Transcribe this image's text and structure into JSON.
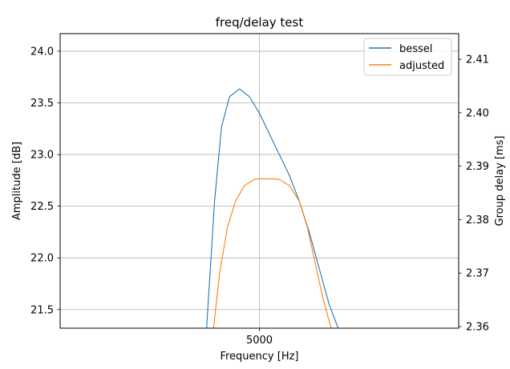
{
  "chart_data": {
    "type": "line",
    "title": "freq/delay test",
    "xlabel": "Frequency [Hz]",
    "ylabel": "Amplitude [dB]",
    "y2label": "Group delay [ms]",
    "xticks": [
      5000
    ],
    "xtick_labels": [
      "5000"
    ],
    "yticks": [
      21.5,
      22.0,
      22.5,
      23.0,
      23.5,
      24.0
    ],
    "ytick_labels": [
      "21.5",
      "22.0",
      "22.5",
      "23.0",
      "23.5",
      "24.0"
    ],
    "y2ticks": [
      2.36,
      2.37,
      2.38,
      2.39,
      2.4,
      2.41
    ],
    "y2tick_labels": [
      "2.36",
      "2.37",
      "2.38",
      "2.39",
      "2.40",
      "2.41"
    ],
    "xlim": [
      3000,
      7000
    ],
    "ylim": [
      21.32,
      24.17
    ],
    "y2lim": [
      2.3597,
      2.4148
    ],
    "grid": true,
    "legend_position": "top-right",
    "series": [
      {
        "name": "bessel",
        "color": "#1f77b4",
        "axis": "left",
        "x": [
          4470,
          4550,
          4620,
          4700,
          4800,
          4900,
          5000,
          5100,
          5200,
          5300,
          5400,
          5500,
          5600,
          5700,
          5790
        ],
        "y": [
          21.32,
          22.55,
          23.27,
          23.56,
          23.635,
          23.56,
          23.4,
          23.2,
          23.0,
          22.8,
          22.55,
          22.25,
          21.9,
          21.55,
          21.32
        ]
      },
      {
        "name": "adjusted",
        "color": "#ff7f0e",
        "axis": "left",
        "x": [
          4540,
          4600,
          4680,
          4760,
          4850,
          4950,
          5000,
          5100,
          5200,
          5300,
          5400,
          5480,
          5560,
          5640,
          5720,
          5800
        ],
        "y": [
          21.32,
          21.85,
          22.3,
          22.55,
          22.7,
          22.76,
          22.765,
          22.765,
          22.76,
          22.7,
          22.55,
          22.3,
          21.95,
          21.6,
          21.32,
          21.32
        ]
      }
    ]
  }
}
